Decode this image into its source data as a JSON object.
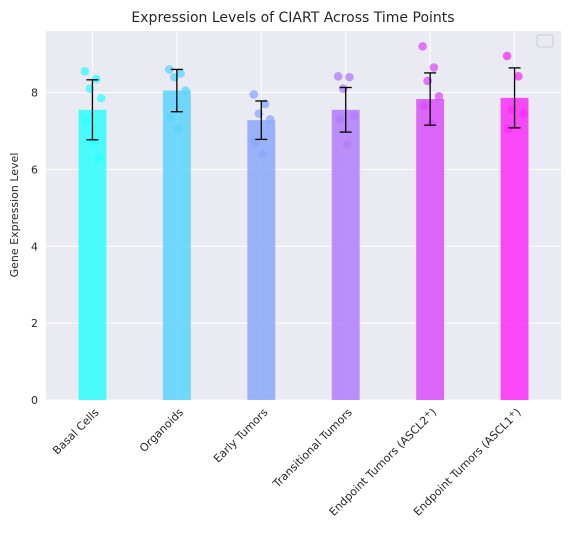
{
  "chart_data": {
    "type": "bar",
    "title": "Expression Levels of CIART Across Time Points",
    "xlabel": "",
    "ylabel": "Gene Expression Level",
    "ylim": [
      0,
      9.6
    ],
    "yticks": [
      0,
      2,
      4,
      6,
      8
    ],
    "grid": true,
    "legend": "top-right (empty)",
    "categories": [
      {
        "label": "Basal Cells"
      },
      {
        "label": "Organoids"
      },
      {
        "label": "Early Tumors"
      },
      {
        "label": "Transitional Tumors"
      },
      {
        "label": "Endpoint Tumors (ASCL2",
        "sup": "+",
        "close": ")"
      },
      {
        "label": "Endpoint Tumors (ASCL1",
        "sup": "+",
        "close": ")"
      }
    ],
    "values": [
      7.55,
      8.05,
      7.28,
      7.55,
      7.83,
      7.86
    ],
    "error": [
      0.78,
      0.55,
      0.5,
      0.58,
      0.68,
      0.78
    ],
    "colors": [
      "#2efefe",
      "#5bd4fb",
      "#8aa8fa",
      "#b27cf9",
      "#d84ff8",
      "#fb2bf8"
    ],
    "points": [
      [
        8.55,
        8.35,
        8.1,
        7.85,
        7.25,
        6.7,
        6.3
      ],
      [
        8.6,
        8.5,
        8.4,
        8.05,
        7.35,
        7.05
      ],
      [
        7.95,
        7.7,
        7.45,
        7.3,
        6.7,
        6.4
      ],
      [
        8.42,
        8.4,
        8.1,
        7.4,
        7.3,
        6.65
      ],
      [
        9.2,
        8.65,
        8.3,
        7.9,
        7.65,
        7.2
      ],
      [
        8.95,
        8.42,
        7.55,
        7.45,
        7.05
      ]
    ]
  }
}
